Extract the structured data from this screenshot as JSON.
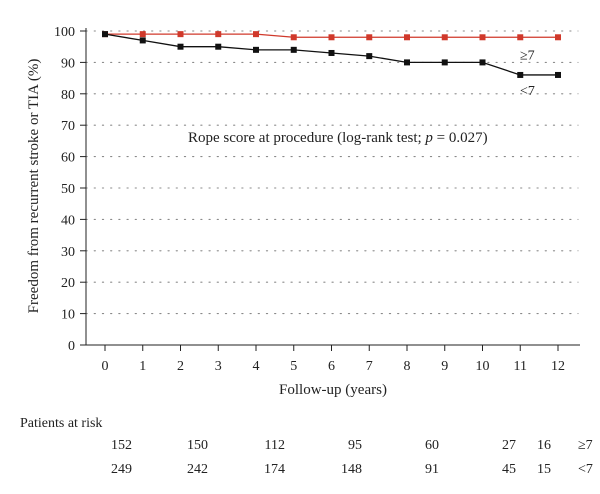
{
  "chart_data": {
    "type": "line",
    "ylabel": "Freedom from recurrent stroke or TIA (%)",
    "xlabel": "Follow-up (years)",
    "xlim": [
      0,
      12
    ],
    "ylim": [
      0,
      100
    ],
    "x_ticks": [
      0,
      1,
      2,
      3,
      4,
      5,
      6,
      7,
      8,
      9,
      10,
      11,
      12
    ],
    "y_ticks": [
      0,
      10,
      20,
      30,
      40,
      50,
      60,
      70,
      80,
      90,
      100
    ],
    "grid": "horizontal-dotted",
    "annotation": {
      "prefix": "Rope score at procedure (log-rank test; ",
      "p_symbol": "p",
      "suffix": " = 0.027)"
    },
    "series": [
      {
        "name": "≥7",
        "color": "#d0392b",
        "points": [
          [
            0,
            99
          ],
          [
            1,
            99
          ],
          [
            2,
            99
          ],
          [
            3,
            99
          ],
          [
            4,
            99
          ],
          [
            5,
            98
          ],
          [
            6,
            98
          ],
          [
            7,
            98
          ],
          [
            8,
            98
          ],
          [
            9,
            98
          ],
          [
            10,
            98
          ],
          [
            11,
            98
          ],
          [
            12,
            98
          ]
        ]
      },
      {
        "name": "<7",
        "color": "#111111",
        "points": [
          [
            0,
            99
          ],
          [
            1,
            97
          ],
          [
            2,
            95
          ],
          [
            3,
            95
          ],
          [
            4,
            94
          ],
          [
            5,
            94
          ],
          [
            6,
            93
          ],
          [
            7,
            92
          ],
          [
            8,
            90
          ],
          [
            9,
            90
          ],
          [
            10,
            90
          ],
          [
            11,
            86
          ],
          [
            12,
            86
          ]
        ]
      }
    ],
    "at_risk": {
      "title": "Patients at risk",
      "rows": [
        {
          "label": "≥7",
          "values": [
            "152",
            "150",
            "112",
            "95",
            "60",
            "27",
            "16"
          ]
        },
        {
          "label": "<7",
          "values": [
            "249",
            "242",
            "174",
            "148",
            "91",
            "45",
            "15"
          ]
        }
      ]
    }
  }
}
